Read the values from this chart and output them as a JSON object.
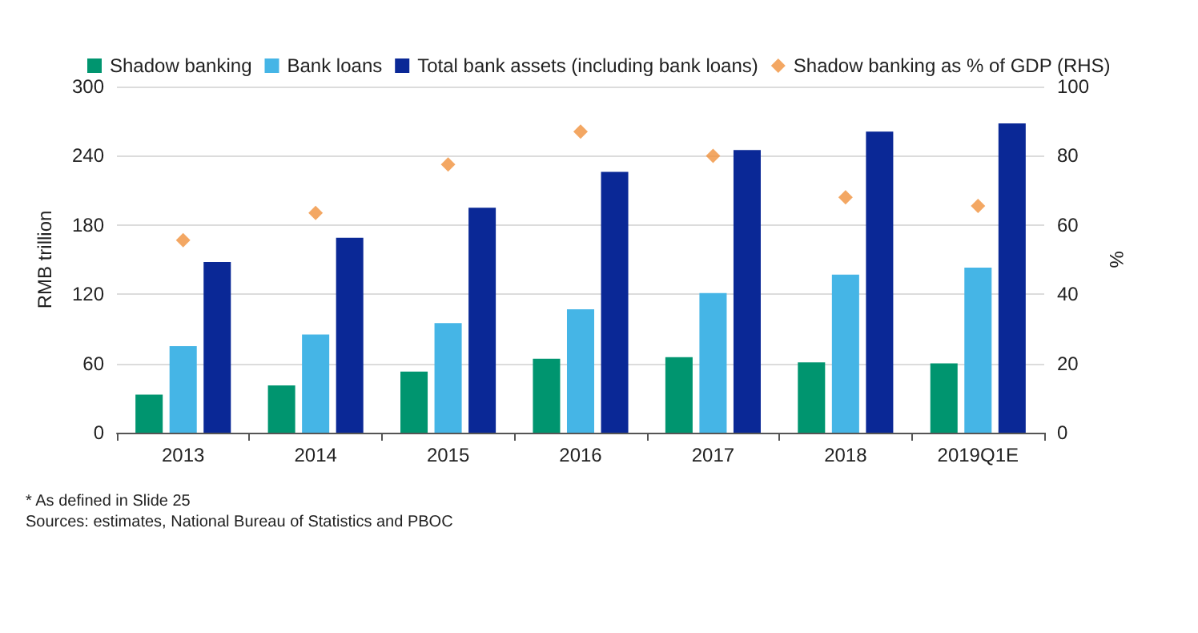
{
  "chart_data": {
    "type": "bar",
    "ylabel": "RMB trillion",
    "y2label": "%",
    "categories": [
      "2013",
      "2014",
      "2015",
      "2016",
      "2017",
      "2018",
      "2019Q1E"
    ],
    "series": [
      {
        "name": "Shadow banking",
        "color": "#00956f",
        "values": [
          33,
          41,
          53,
          64,
          65.5,
          61,
          60
        ]
      },
      {
        "name": "Bank loans",
        "color": "#45b5e6",
        "values": [
          75,
          85,
          95,
          107,
          121,
          137,
          143
        ]
      },
      {
        "name": "Total bank assets (including bank loans)",
        "color": "#0a2896",
        "values": [
          148,
          169,
          195,
          226,
          245,
          261,
          268
        ]
      },
      {
        "name": "Shadow banking as % of GDP (RHS)",
        "type": "scatter",
        "axis": "y2",
        "marker": "diamond",
        "color": "#f0913c",
        "values": [
          55.6,
          63.5,
          77.5,
          87,
          80,
          68,
          65.5
        ]
      }
    ],
    "ylim": [
      0,
      300
    ],
    "yticks": [
      0,
      60,
      120,
      180,
      240,
      300
    ],
    "y2lim": [
      0,
      100
    ],
    "y2ticks": [
      0,
      20,
      40,
      60,
      80,
      100
    ],
    "grid": "y",
    "legend": "top",
    "annotations": [
      "* As defined in Slide 25",
      "Sources: estimates, National Bureau of Statistics and PBOC"
    ]
  }
}
